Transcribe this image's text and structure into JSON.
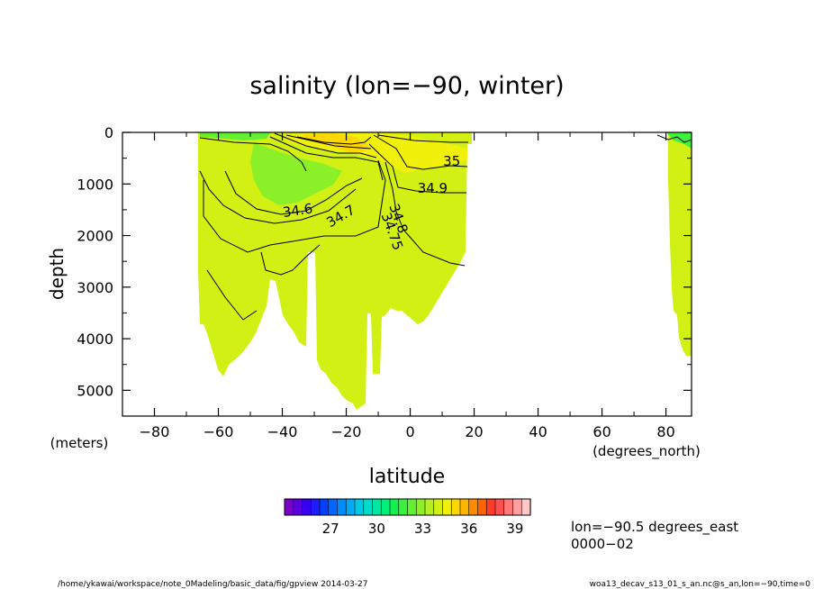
{
  "chart_data": {
    "type": "contour",
    "title": "salinity (lon=−90, winter)",
    "xlabel": "latitude",
    "xunit": "(degrees_north)",
    "ylabel": "depth",
    "yunit": "(meters)",
    "xlim": [
      -90,
      88
    ],
    "ylim": [
      5500,
      0
    ],
    "x_ticks": [
      -80,
      -60,
      -40,
      -20,
      0,
      20,
      40,
      60,
      80
    ],
    "x_tick_labels": [
      "−80",
      "−60",
      "−40",
      "−20",
      "0",
      "20",
      "40",
      "60",
      "80"
    ],
    "y_ticks": [
      0,
      1000,
      2000,
      3000,
      4000,
      5000
    ],
    "y_tick_labels": [
      "0",
      "1000",
      "2000",
      "3000",
      "4000",
      "5000"
    ],
    "contour_labels": [
      {
        "text": "35",
        "lat": 13,
        "depth": 650
      },
      {
        "text": "34.9",
        "lat": 7,
        "depth": 1170
      },
      {
        "text": "34.8",
        "lat": -5,
        "depth": 1700
      },
      {
        "text": "34.75",
        "lat": -7,
        "depth": 1950
      },
      {
        "text": "34.7",
        "lat": -21,
        "depth": 1700
      },
      {
        "text": "34.6",
        "lat": -35,
        "depth": 1600
      }
    ],
    "colorbar": {
      "tick_labels": [
        "27",
        "30",
        "33",
        "36",
        "39"
      ],
      "tick_values": [
        27,
        30,
        33,
        36,
        39
      ],
      "range": [
        24,
        40
      ],
      "colors": [
        "#7b00c8",
        "#5a00dc",
        "#3800f0",
        "#1c1cff",
        "#0040ff",
        "#0066ff",
        "#008cff",
        "#00aaf5",
        "#00c8e6",
        "#00dcc8",
        "#00e6a0",
        "#00f078",
        "#14f050",
        "#3cf03c",
        "#64f032",
        "#8cf028",
        "#b4f01e",
        "#d2f014",
        "#f0f00a",
        "#ffd700",
        "#ffb400",
        "#ff8c00",
        "#ff6400",
        "#ff3c28",
        "#ff5050",
        "#ff7878",
        "#ffa0a0",
        "#ffc8c8"
      ]
    },
    "field_colors": {
      "main": "#d2f014",
      "fresh": "#8cf028",
      "saline": "#f0f00a",
      "peak": "#ffd700"
    }
  },
  "annotations": {
    "lon_text": "lon=−90.5 degrees_east",
    "time_text": "0000−02",
    "footer_left": "/home/ykawai/workspace/note_0Madeling/basic_data/fig/gpview  2014-03-27",
    "footer_right": "woa13_decav_s13_01_s_an.nc@s_an,lon=−90,time=0"
  }
}
